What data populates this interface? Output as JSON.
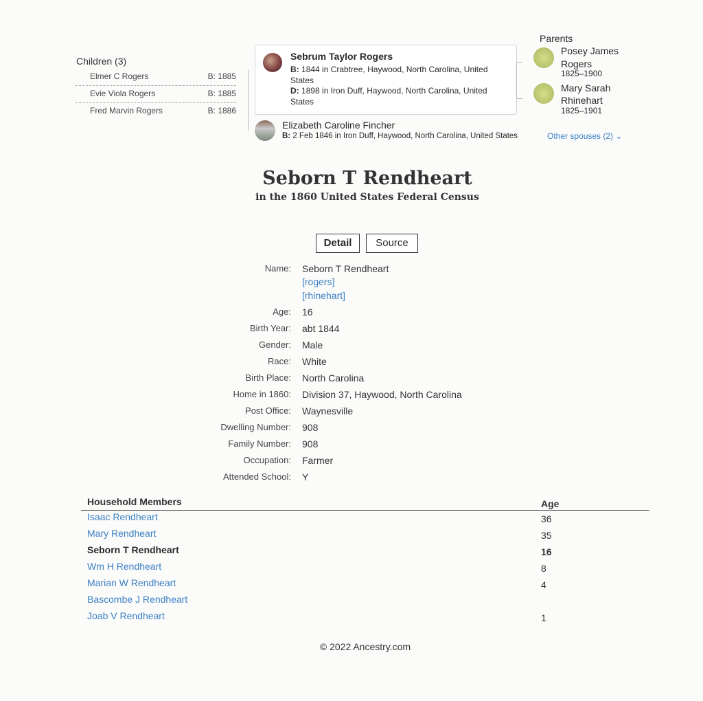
{
  "family": {
    "children_heading": "Children (3)",
    "children": [
      {
        "name": "Elmer C Rogers",
        "birth": "B: 1885"
      },
      {
        "name": "Evie Viola Rogers",
        "birth": "B: 1885"
      },
      {
        "name": "Fred Marvin Rogers",
        "birth": "B: 1886"
      }
    ],
    "person": {
      "name": "Sebrum Taylor Rogers",
      "birth_label": "B:",
      "birth": "1844 in Crabtree, Haywood, North Carolina, United States",
      "death_label": "D:",
      "death": "1898 in Iron Duff, Haywood, North Carolina, United States"
    },
    "spouse": {
      "name": "Elizabeth Caroline Fincher",
      "birth_label": "B:",
      "birth": "2 Feb 1846 in Iron Duff, Haywood, North Carolina, United States"
    },
    "other_spouses": "Other spouses (2)",
    "parents_heading": "Parents",
    "parents": [
      {
        "name": "Posey James Rogers",
        "years": "1825–1900"
      },
      {
        "name": "Mary Sarah Rhinehart",
        "years": "1825–1901"
      }
    ]
  },
  "record": {
    "title": "Seborn T Rendheart",
    "subtitle": "in the 1860 United States Federal Census"
  },
  "tabs": {
    "detail": "Detail",
    "source": "Source"
  },
  "details": {
    "name_label": "Name:",
    "name": "Seborn T Rendheart",
    "links": [
      "[rogers]",
      "[rhinehart]"
    ],
    "rows": [
      {
        "label": "Age:",
        "value": "16"
      },
      {
        "label": "Birth Year:",
        "value": "abt 1844"
      },
      {
        "label": "Gender:",
        "value": "Male"
      },
      {
        "label": "Race:",
        "value": "White"
      },
      {
        "label": "Birth Place:",
        "value": "North Carolina"
      },
      {
        "label": "Home in 1860:",
        "value": "Division 37, Haywood, North Carolina"
      },
      {
        "label": "Post Office:",
        "value": "Waynesville"
      },
      {
        "label": "Dwelling Number:",
        "value": "908"
      },
      {
        "label": "Family Number:",
        "value": "908"
      },
      {
        "label": "Occupation:",
        "value": "Farmer"
      },
      {
        "label": "Attended School:",
        "value": "Y"
      }
    ]
  },
  "household": {
    "heading": "Household Members",
    "age_heading": "Age",
    "members": [
      {
        "name": "Isaac Rendheart",
        "age": "36",
        "current": false
      },
      {
        "name": "Mary Rendheart",
        "age": "35",
        "current": false
      },
      {
        "name": "Seborn T Rendheart",
        "age": "16",
        "current": true
      },
      {
        "name": "Wm H Rendheart",
        "age": "8",
        "current": false
      },
      {
        "name": "Marian W Rendheart",
        "age": "4",
        "current": false
      },
      {
        "name": "Bascombe J Rendheart",
        "age": "",
        "current": false
      },
      {
        "name": "Joab V Rendheart",
        "age": "1",
        "current": false
      }
    ]
  },
  "footer": "© 2022 Ancestry.com",
  "colors": {
    "link": "#3a7fc4",
    "text": "#2a2a2a"
  }
}
